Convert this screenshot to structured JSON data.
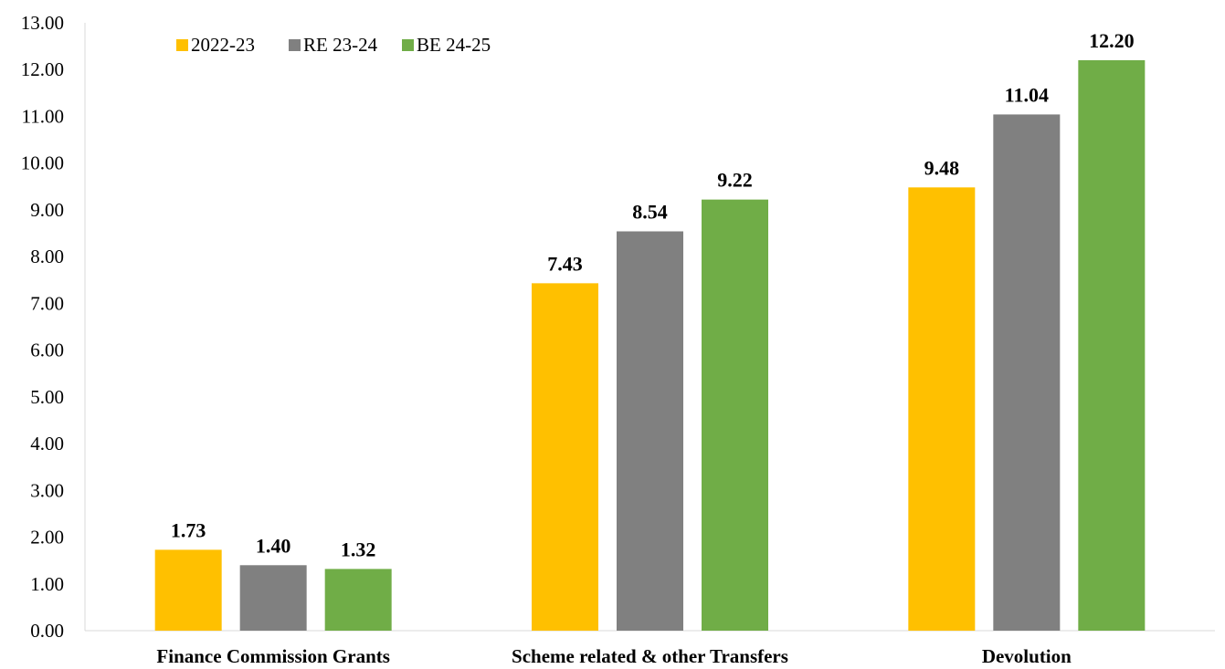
{
  "chart_data": {
    "type": "bar",
    "categories": [
      "Finance Commission Grants",
      "Scheme related & other Transfers",
      "Devolution"
    ],
    "series": [
      {
        "name": "2022-23",
        "color": "#FFC000",
        "values": [
          1.73,
          7.43,
          9.48
        ]
      },
      {
        "name": "RE 23-24",
        "color": "#808080",
        "values": [
          1.4,
          8.54,
          11.04
        ]
      },
      {
        "name": "BE 24-25",
        "color": "#70AD47",
        "values": [
          1.32,
          9.22,
          12.2
        ]
      }
    ],
    "ylim": [
      0,
      13
    ],
    "yticks": [
      "0.00",
      "1.00",
      "2.00",
      "3.00",
      "4.00",
      "5.00",
      "6.00",
      "7.00",
      "8.00",
      "9.00",
      "10.00",
      "11.00",
      "12.00",
      "13.00"
    ],
    "grid": false,
    "legend_position": "top-left"
  }
}
